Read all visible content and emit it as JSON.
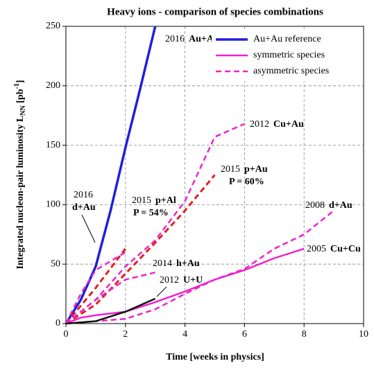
{
  "chart_data": {
    "type": "line",
    "title": "Heavy ions - comparison of species combinations",
    "x_label": "Time  [weeks in physics]",
    "y_label": {
      "main": "Integrated nucleon-pair luminosity  L",
      "sub": "NN",
      "unit_open": " [pb",
      "sup": "-1",
      "unit_close": "]"
    },
    "xlim": [
      0,
      10
    ],
    "xticks": [
      0,
      2,
      4,
      6,
      8,
      10
    ],
    "ylim": [
      0,
      250
    ],
    "yticks": [
      0,
      50,
      100,
      150,
      200,
      250
    ],
    "grid": true,
    "legend_position": "upper right",
    "legend": [
      {
        "name": "Au+Au reference",
        "color": "#1f1fdd",
        "dash": false
      },
      {
        "name": "symmetric species",
        "color": "#ee22cc",
        "dash": false
      },
      {
        "name": "asymmetric species",
        "color": "#ee22cc",
        "dash": true
      }
    ],
    "series": [
      {
        "year": "2016",
        "label": "Au+Au",
        "color": "#1f1fdd",
        "dash": false,
        "width": 3.5,
        "x": [
          0,
          0.5,
          1,
          1.5,
          2,
          2.5,
          3
        ],
        "values": [
          0,
          20,
          48,
          95,
          148,
          198,
          250
        ]
      },
      {
        "year": "2012",
        "label": "Cu+Au",
        "color": "#ee22cc",
        "dash": true,
        "width": 2.5,
        "x": [
          0,
          1,
          2,
          3,
          4,
          5,
          6
        ],
        "values": [
          0,
          20,
          48,
          70,
          103,
          157,
          168
        ]
      },
      {
        "year": "2015",
        "label": "p+Au",
        "note": "P = 60%",
        "color": "#e02020",
        "dash": true,
        "width": 3,
        "x": [
          0,
          1,
          2,
          3,
          4,
          5
        ],
        "values": [
          0,
          16,
          42,
          68,
          95,
          125
        ]
      },
      {
        "year": "2008",
        "label": "d+Au",
        "color": "#ee22cc",
        "dash": true,
        "width": 2.5,
        "x": [
          0,
          1,
          2,
          3,
          4,
          5,
          6,
          7,
          8,
          9
        ],
        "values": [
          0,
          2,
          4,
          12,
          25,
          37,
          46,
          63,
          75,
          95
        ]
      },
      {
        "year": "2005",
        "label": "Cu+Cu",
        "color": "#ee22cc",
        "dash": false,
        "width": 2.5,
        "x": [
          0,
          0.5,
          1,
          2,
          3,
          4,
          5,
          6,
          7,
          8
        ],
        "values": [
          0,
          5,
          7,
          10,
          18,
          27,
          37,
          45,
          55,
          63
        ]
      },
      {
        "year": "2015",
        "label": "p+Al",
        "note": "P = 54%",
        "color": "#e02020",
        "dash": true,
        "width": 3,
        "x": [
          0,
          1,
          2
        ],
        "values": [
          0,
          30,
          63
        ]
      },
      {
        "year": "2016",
        "label": "d+Au",
        "color": "#ee22cc",
        "dash": true,
        "width": 2.5,
        "x": [
          0,
          0.5,
          1,
          2
        ],
        "values": [
          0,
          25,
          45,
          60
        ]
      },
      {
        "year": "2014",
        "label": "h+Au",
        "color": "#ee22cc",
        "dash": true,
        "width": 2.5,
        "x": [
          0,
          1,
          2,
          3
        ],
        "values": [
          0,
          20,
          37,
          43
        ]
      },
      {
        "year": "2012",
        "label": "U+U",
        "color": "#111111",
        "dash": false,
        "width": 2.5,
        "x": [
          0,
          1,
          2,
          3
        ],
        "values": [
          0,
          2,
          10,
          21
        ]
      }
    ]
  }
}
